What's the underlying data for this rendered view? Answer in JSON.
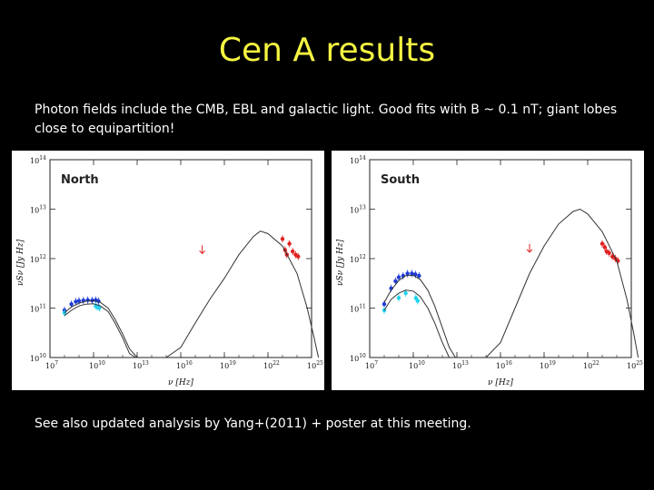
{
  "slide": {
    "title": "Cen A results",
    "intro": "Photon fields include the CMB, EBL and galactic light. Good fits with B ~ 0.1 nT; giant lobes close to equipartition!",
    "footer": "See also updated analysis by Yang+(2011) + poster at this meeting."
  },
  "colors": {
    "title": "#f5f542",
    "radio_data": "#1f3bd6",
    "radio_data_light": "#22d3ee",
    "gamma_data": "#e02020",
    "model_curve": "#333333"
  },
  "chart_data": [
    {
      "type": "scatter",
      "panel_label": "North",
      "xlabel": "ν [Hz]",
      "ylabel": "νSν [Jy Hz]",
      "x_scale": "log",
      "y_scale": "log",
      "xlim": [
        10000000.0,
        1e+25
      ],
      "ylim": [
        10000000000.0,
        100000000000000.0
      ],
      "x_ticks": [
        {
          "base": "10",
          "exp": "7"
        },
        {
          "base": "10",
          "exp": "10"
        },
        {
          "base": "10",
          "exp": "13"
        },
        {
          "base": "10",
          "exp": "16"
        },
        {
          "base": "10",
          "exp": "19"
        },
        {
          "base": "10",
          "exp": "22"
        },
        {
          "base": "10",
          "exp": "25"
        }
      ],
      "y_ticks": [
        {
          "base": "10",
          "exp": "10"
        },
        {
          "base": "10",
          "exp": "11"
        },
        {
          "base": "10",
          "exp": "12"
        },
        {
          "base": "10",
          "exp": "13"
        },
        {
          "base": "10",
          "exp": "14"
        }
      ],
      "series": [
        {
          "color": "radio_data",
          "kind": "points",
          "points": [
            [
              100000000.0,
              90000000000.0
            ],
            [
              300000000.0,
              120000000000.0
            ],
            [
              600000000.0,
              135000000000.0
            ],
            [
              1000000000.0,
              140000000000.0
            ],
            [
              2000000000.0,
              142000000000.0
            ],
            [
              4000000000.0,
              145000000000.0
            ],
            [
              8000000000.0,
              143000000000.0
            ],
            [
              14000000000.0,
              145000000000.0
            ],
            [
              22000000000.0,
              138000000000.0
            ]
          ]
        },
        {
          "color": "radio_data_light",
          "kind": "points",
          "points": [
            [
              100000000.0,
              80000000000.0
            ],
            [
              14000000000.0,
              110000000000.0
            ],
            [
              18000000000.0,
              105000000000.0
            ],
            [
              25000000000.0,
              100000000000.0
            ]
          ]
        },
        {
          "color": "gamma_data",
          "kind": "points",
          "points": [
            [
              1e+23,
              2500000000000.0
            ],
            [
              1.5e+23,
              1500000000000.0
            ],
            [
              2e+23,
              1200000000000.0
            ],
            [
              3e+23,
              2000000000000.0
            ],
            [
              5e+23,
              1400000000000.0
            ],
            [
              8e+23,
              1200000000000.0
            ],
            [
              1.2e+24,
              1100000000000.0
            ]
          ]
        },
        {
          "color": "gamma_data",
          "kind": "upper_limit",
          "points": [
            [
              3e+17,
              1500000000000.0
            ]
          ]
        },
        {
          "color": "model_curve",
          "kind": "line",
          "points": [
            [
              100000000.0,
              80000000000.0
            ],
            [
              300000000.0,
              105000000000.0
            ],
            [
              1000000000.0,
              125000000000.0
            ],
            [
              3000000000.0,
              138000000000.0
            ],
            [
              10000000000.0,
              142000000000.0
            ],
            [
              30000000000.0,
              130000000000.0
            ],
            [
              100000000000.0,
              100000000000.0
            ],
            [
              300000000000.0,
              60000000000.0
            ],
            [
              1000000000000.0,
              30000000000.0
            ],
            [
              3000000000000.0,
              15000000000.0
            ],
            [
              10000000000000.0,
              10000000000.0
            ]
          ]
        },
        {
          "color": "model_curve",
          "kind": "line",
          "points": [
            [
              100000000.0,
              70000000000.0
            ],
            [
              300000000.0,
              90000000000.0
            ],
            [
              1000000000.0,
              110000000000.0
            ],
            [
              3000000000.0,
              120000000000.0
            ],
            [
              10000000000.0,
              122000000000.0
            ],
            [
              30000000000.0,
              110000000000.0
            ],
            [
              100000000000.0,
              85000000000.0
            ],
            [
              300000000000.0,
              50000000000.0
            ],
            [
              1000000000000.0,
              25000000000.0
            ],
            [
              3000000000000.0,
              12000000000.0
            ],
            [
              8000000000000.0,
              10000000000.0
            ]
          ]
        },
        {
          "color": "model_curve",
          "kind": "line",
          "points": [
            [
              1000000000000000.0,
              10000000000.0
            ],
            [
              1e+16,
              16000000000.0
            ],
            [
              1e+17,
              50000000000.0
            ],
            [
              1e+18,
              150000000000.0
            ],
            [
              1e+19,
              400000000000.0
            ],
            [
              1e+20,
              1200000000000.0
            ],
            [
              1e+21,
              2800000000000.0
            ],
            [
              3e+21,
              3600000000000.0
            ],
            [
              1e+22,
              3200000000000.0
            ],
            [
              1e+23,
              1800000000000.0
            ],
            [
              1e+24,
              500000000000.0
            ],
            [
              5e+24,
              100000000000.0
            ],
            [
              1.5e+25,
              25000000000.0
            ],
            [
              3e+25,
              10000000000.0
            ]
          ]
        }
      ]
    },
    {
      "type": "scatter",
      "panel_label": "South",
      "xlabel": "ν [Hz]",
      "ylabel": "νSν [Jy Hz]",
      "x_scale": "log",
      "y_scale": "log",
      "xlim": [
        10000000.0,
        1e+25
      ],
      "ylim": [
        10000000000.0,
        100000000000000.0
      ],
      "x_ticks": [
        {
          "base": "10",
          "exp": "7"
        },
        {
          "base": "10",
          "exp": "10"
        },
        {
          "base": "10",
          "exp": "13"
        },
        {
          "base": "10",
          "exp": "16"
        },
        {
          "base": "10",
          "exp": "19"
        },
        {
          "base": "10",
          "exp": "22"
        },
        {
          "base": "10",
          "exp": "25"
        }
      ],
      "y_ticks": [
        {
          "base": "10",
          "exp": "10"
        },
        {
          "base": "10",
          "exp": "11"
        },
        {
          "base": "10",
          "exp": "12"
        },
        {
          "base": "10",
          "exp": "13"
        },
        {
          "base": "10",
          "exp": "14"
        }
      ],
      "series": [
        {
          "color": "radio_data",
          "kind": "points",
          "points": [
            [
              100000000.0,
              120000000000.0
            ],
            [
              300000000.0,
              250000000000.0
            ],
            [
              600000000.0,
              350000000000.0
            ],
            [
              1000000000.0,
              420000000000.0
            ],
            [
              2000000000.0,
              450000000000.0
            ],
            [
              4000000000.0,
              500000000000.0
            ],
            [
              8000000000.0,
              500000000000.0
            ],
            [
              14000000000.0,
              480000000000.0
            ],
            [
              25000000000.0,
              450000000000.0
            ]
          ]
        },
        {
          "color": "radio_data_light",
          "kind": "points",
          "points": [
            [
              100000000.0,
              90000000000.0
            ],
            [
              1000000000.0,
              160000000000.0
            ],
            [
              3000000000.0,
              200000000000.0
            ],
            [
              15000000000.0,
              160000000000.0
            ],
            [
              20000000000.0,
              140000000000.0
            ]
          ]
        },
        {
          "color": "gamma_data",
          "kind": "points",
          "points": [
            [
              1e+23,
              2000000000000.0
            ],
            [
              1.5e+23,
              1700000000000.0
            ],
            [
              2e+23,
              1400000000000.0
            ],
            [
              3e+23,
              1300000000000.0
            ],
            [
              5e+23,
              1100000000000.0
            ],
            [
              8e+23,
              1000000000000.0
            ],
            [
              1.2e+24,
              900000000000.0
            ]
          ]
        },
        {
          "color": "gamma_data",
          "kind": "upper_limit",
          "points": [
            [
              1e+18,
              1600000000000.0
            ]
          ]
        },
        {
          "color": "model_curve",
          "kind": "line",
          "points": [
            [
              100000000.0,
              130000000000.0
            ],
            [
              300000000.0,
              230000000000.0
            ],
            [
              1000000000.0,
              360000000000.0
            ],
            [
              3000000000.0,
              450000000000.0
            ],
            [
              10000000000.0,
              460000000000.0
            ],
            [
              30000000000.0,
              380000000000.0
            ],
            [
              100000000000.0,
              230000000000.0
            ],
            [
              300000000000.0,
              110000000000.0
            ],
            [
              1000000000000.0,
              40000000000.0
            ],
            [
              3000000000000.0,
              16000000000.0
            ],
            [
              8000000000000.0,
              10000000000.0
            ]
          ]
        },
        {
          "color": "model_curve",
          "kind": "line",
          "points": [
            [
              100000000.0,
              90000000000.0
            ],
            [
              300000000.0,
              150000000000.0
            ],
            [
              1000000000.0,
              200000000000.0
            ],
            [
              3000000000.0,
              230000000000.0
            ],
            [
              10000000000.0,
              220000000000.0
            ],
            [
              30000000000.0,
              170000000000.0
            ],
            [
              100000000000.0,
              100000000000.0
            ],
            [
              300000000000.0,
              50000000000.0
            ],
            [
              1000000000000.0,
              20000000000.0
            ],
            [
              3000000000000.0,
              10000000000.0
            ]
          ]
        },
        {
          "color": "model_curve",
          "kind": "line",
          "points": [
            [
              1000000000000000.0,
              10000000000.0
            ],
            [
              1e+16,
              20000000000.0
            ],
            [
              1e+17,
              100000000000.0
            ],
            [
              1e+18,
              500000000000.0
            ],
            [
              1e+19,
              1800000000000.0
            ],
            [
              1e+20,
              5000000000000.0
            ],
            [
              1e+21,
              9000000000000.0
            ],
            [
              3e+21,
              10000000000000.0
            ],
            [
              1e+22,
              8000000000000.0
            ],
            [
              1e+23,
              3500000000000.0
            ],
            [
              1e+24,
              900000000000.0
            ],
            [
              5e+24,
              150000000000.0
            ],
            [
              1.5e+25,
              30000000000.0
            ],
            [
              3e+25,
              10000000000.0
            ]
          ]
        }
      ]
    }
  ]
}
